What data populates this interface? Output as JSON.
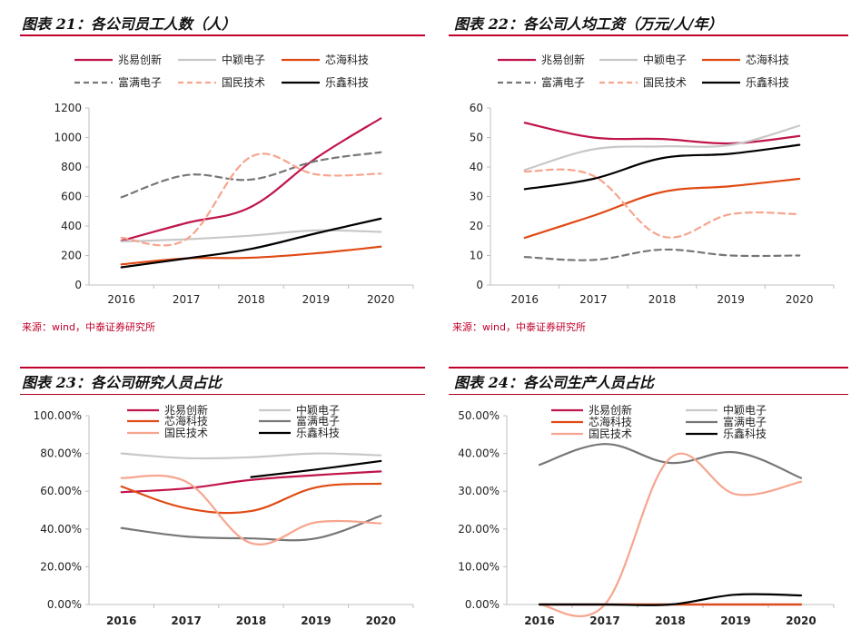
{
  "charts": [
    {
      "title": "图表 21：各公司员工人数（人）",
      "source": "来源：wind，中泰证券研究所",
      "chart_data": {
        "type": "line",
        "x": [
          "2016",
          "2017",
          "2018",
          "2019",
          "2020"
        ],
        "ylim": [
          0,
          1200
        ],
        "yticks": [
          "0",
          "200",
          "400",
          "600",
          "800",
          "1000",
          "1200"
        ],
        "series": [
          {
            "name": "兆易创新",
            "color": "#c0154a",
            "dash": "solid",
            "values": [
              300,
              420,
              530,
              860,
              1130
            ]
          },
          {
            "name": "中颖电子",
            "color": "#c8c8c8",
            "dash": "solid",
            "values": [
              295,
              310,
              335,
              370,
              360
            ]
          },
          {
            "name": "芯海科技",
            "color": "#e04a14",
            "dash": "solid",
            "values": [
              140,
              180,
              185,
              215,
              260
            ]
          },
          {
            "name": "富满电子",
            "color": "#777777",
            "dash": "dash",
            "values": [
              595,
              745,
              715,
              840,
              900
            ]
          },
          {
            "name": "国民技术",
            "color": "#f6a58e",
            "dash": "dash",
            "values": [
              320,
              310,
              870,
              750,
              755
            ]
          },
          {
            "name": "乐鑫科技",
            "color": "#000000",
            "dash": "solid",
            "values": [
              120,
              180,
              245,
              350,
              450
            ]
          }
        ]
      }
    },
    {
      "title": "图表 22：各公司人均工资（万元/人/年）",
      "source": "来源：wind，中泰证券研究所",
      "chart_data": {
        "type": "line",
        "x": [
          "2016",
          "2017",
          "2018",
          "2019",
          "2020"
        ],
        "ylim": [
          0,
          60
        ],
        "yticks": [
          "0",
          "10",
          "20",
          "30",
          "40",
          "50",
          "60"
        ],
        "series": [
          {
            "name": "兆易创新",
            "color": "#c0154a",
            "dash": "solid",
            "values": [
              55,
              50,
              49.5,
              48,
              50.5
            ]
          },
          {
            "name": "中颖电子",
            "color": "#c8c8c8",
            "dash": "solid",
            "values": [
              39,
              46,
              47,
              47.5,
              54
            ]
          },
          {
            "name": "芯海科技",
            "color": "#e04a14",
            "dash": "solid",
            "values": [
              16,
              23.5,
              31.5,
              33.5,
              36
            ]
          },
          {
            "name": "富满电子",
            "color": "#777777",
            "dash": "dash",
            "values": [
              9.5,
              8.5,
              12,
              10,
              10
            ]
          },
          {
            "name": "国民技术",
            "color": "#f6a58e",
            "dash": "dash",
            "values": [
              38.5,
              37,
              16.5,
              24,
              24
            ]
          },
          {
            "name": "乐鑫科技",
            "color": "#000000",
            "dash": "solid",
            "values": [
              32.5,
              36,
              43,
              44.5,
              47.5
            ]
          }
        ]
      }
    },
    {
      "title": "图表 23：各公司研究人员占比",
      "source": "",
      "chart_data": {
        "type": "line",
        "x": [
          "2016",
          "2017",
          "2018",
          "2019",
          "2020"
        ],
        "ylim": [
          0,
          100
        ],
        "yticks": [
          "0.00%",
          "20.00%",
          "40.00%",
          "60.00%",
          "80.00%",
          "100.00%"
        ],
        "series": [
          {
            "name": "兆易创新",
            "color": "#c0154a",
            "dash": "solid",
            "values": [
              59.5,
              61.5,
              66,
              68.5,
              70.5
            ]
          },
          {
            "name": "中颖电子",
            "color": "#c8c8c8",
            "dash": "solid",
            "values": [
              80,
              77.5,
              78,
              80,
              79
            ]
          },
          {
            "name": "芯海科技",
            "color": "#e04a14",
            "dash": "solid",
            "values": [
              62.5,
              51,
              49.5,
              62,
              64
            ]
          },
          {
            "name": "富满电子",
            "color": "#777777",
            "dash": "solid",
            "values": [
              40.5,
              36,
              35,
              35,
              47
            ]
          },
          {
            "name": "国民技术",
            "color": "#f6a58e",
            "dash": "solid",
            "values": [
              67,
              65,
              32.5,
              43.5,
              43
            ]
          },
          {
            "name": "乐鑫科技",
            "color": "#000000",
            "dash": "solid",
            "values": [
              null,
              null,
              67.5,
              71.5,
              76
            ]
          }
        ]
      }
    },
    {
      "title": "图表 24：各公司生产人员占比",
      "source": "",
      "chart_data": {
        "type": "line",
        "x": [
          "2016",
          "2017",
          "2018",
          "2019",
          "2020"
        ],
        "ylim": [
          0,
          50
        ],
        "yticks": [
          "0.00%",
          "10.00%",
          "20.00%",
          "30.00%",
          "40.00%",
          "50.00%"
        ],
        "series": [
          {
            "name": "兆易创新",
            "color": "#c0154a",
            "dash": "solid",
            "values": [
              0,
              0,
              0,
              0,
              0
            ]
          },
          {
            "name": "中颖电子",
            "color": "#c8c8c8",
            "dash": "solid",
            "values": [
              0,
              0,
              0,
              0,
              0
            ]
          },
          {
            "name": "芯海科技",
            "color": "#e04a14",
            "dash": "solid",
            "values": [
              0,
              0,
              0,
              0,
              0
            ]
          },
          {
            "name": "富满电子",
            "color": "#777777",
            "dash": "solid",
            "values": [
              37,
              42.5,
              37.5,
              40.3,
              33.5
            ]
          },
          {
            "name": "国民技术",
            "color": "#f6a58e",
            "dash": "solid",
            "values": [
              0,
              0,
              38.8,
              29.2,
              32.5
            ]
          },
          {
            "name": "乐鑫科技",
            "color": "#000000",
            "dash": "solid",
            "values": [
              0,
              0,
              0,
              2.6,
              2.4
            ]
          }
        ]
      }
    }
  ]
}
